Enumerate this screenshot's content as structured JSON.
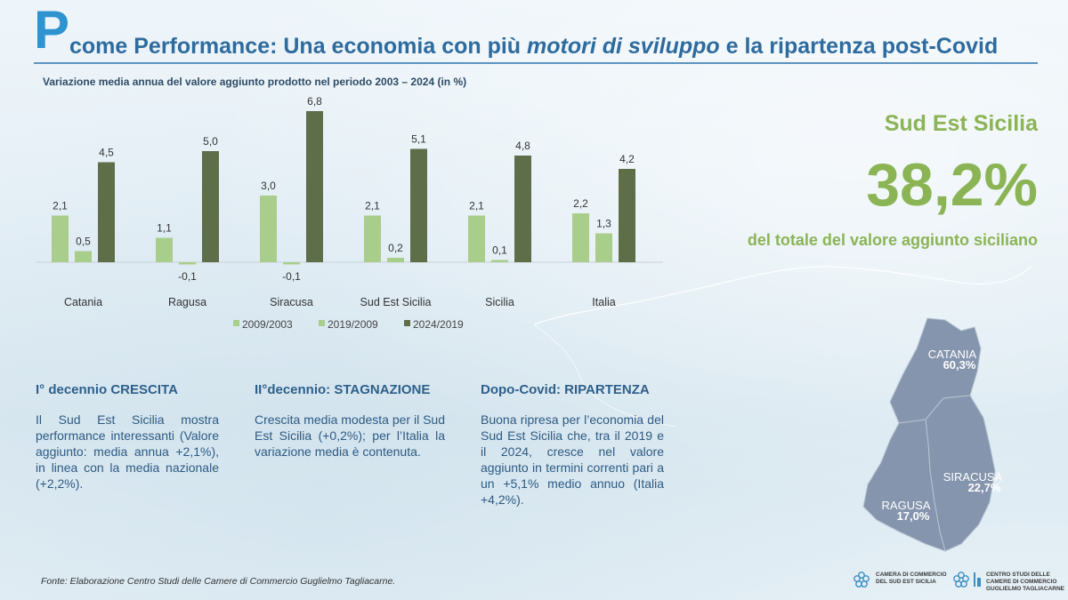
{
  "header": {
    "initial": "P",
    "title_before": "come Performance: Una economia con più ",
    "title_emph": "motori di sviluppo",
    "title_after": " e la ripartenza post-Covid"
  },
  "chart_data": {
    "type": "bar",
    "title": "Variazione media annua del valore aggiunto prodotto nel periodo 2003 – 2024 (in %)",
    "categories": [
      "Catania",
      "Ragusa",
      "Siracusa",
      "Sud Est Sicilia",
      "Sicilia",
      "Italia"
    ],
    "series": [
      {
        "name": "2009/2003",
        "color": "#a9cd8a",
        "values": [
          2.1,
          1.1,
          3.0,
          2.1,
          2.1,
          2.2
        ],
        "labels": [
          "2,1",
          "1,1",
          "3,0",
          "2,1",
          "2,1",
          "2,2"
        ]
      },
      {
        "name": "2019/2009",
        "color": "#a9cd8a",
        "values": [
          0.5,
          -0.1,
          -0.1,
          0.2,
          0.1,
          1.3
        ],
        "labels": [
          "0,5",
          "-0,1",
          "-0,1",
          "0,2",
          "0,1",
          "1,3"
        ]
      },
      {
        "name": "2024/2019",
        "color": "#5e6e48",
        "values": [
          4.5,
          5.0,
          6.8,
          5.1,
          4.8,
          4.2
        ],
        "labels": [
          "4,5",
          "5,0",
          "6,8",
          "5,1",
          "4,8",
          "4,2"
        ]
      }
    ],
    "legend_position": "bottom",
    "ylim": [
      -0.1,
      6.8
    ],
    "grid": false
  },
  "headline": {
    "name": "Sud Est Sicilia",
    "value": "38,2%",
    "description": "del totale del valore aggiunto siciliano"
  },
  "columns": [
    {
      "heading": "I° decennio  CRESCITA",
      "body": "Il Sud Est Sicilia mostra performance interessanti (Valore aggiunto: media annua +2,1%), in linea con la media nazionale (+2,2%)."
    },
    {
      "heading": "II°decennio: STAGNAZIONE",
      "body": "Crescita media modesta per il Sud Est Sicilia (+0,2%); per l’Italia la variazione media è contenuta."
    },
    {
      "heading": "Dopo-Covid: RIPARTENZA",
      "body": "Buona ripresa per l’economia del Sud Est Sicilia che, tra il 2019 e il 2024, cresce nel valore aggiunto in termini correnti pari a un +5,1% medio annuo (Italia +4,2%)."
    }
  ],
  "map": {
    "regions": [
      {
        "name": "CATANIA",
        "share": "60,3%"
      },
      {
        "name": "SIRACUSA",
        "share": "22,7%"
      },
      {
        "name": "RAGUSA",
        "share": "17,0%"
      }
    ],
    "fill_color": "#8595ad"
  },
  "source": "Fonte: Elaborazione Centro Studi delle Camere di Commercio Guglielmo Tagliacarne.",
  "logos": {
    "chamber": [
      "CAMERA DI COMMERCIO",
      "DEL SUD EST SICILIA"
    ],
    "centro_studi": [
      "CENTRO STUDI DELLE",
      "CAMERE DI COMMERCIO",
      "GUGLIELMO TAGLIACARNE"
    ]
  }
}
